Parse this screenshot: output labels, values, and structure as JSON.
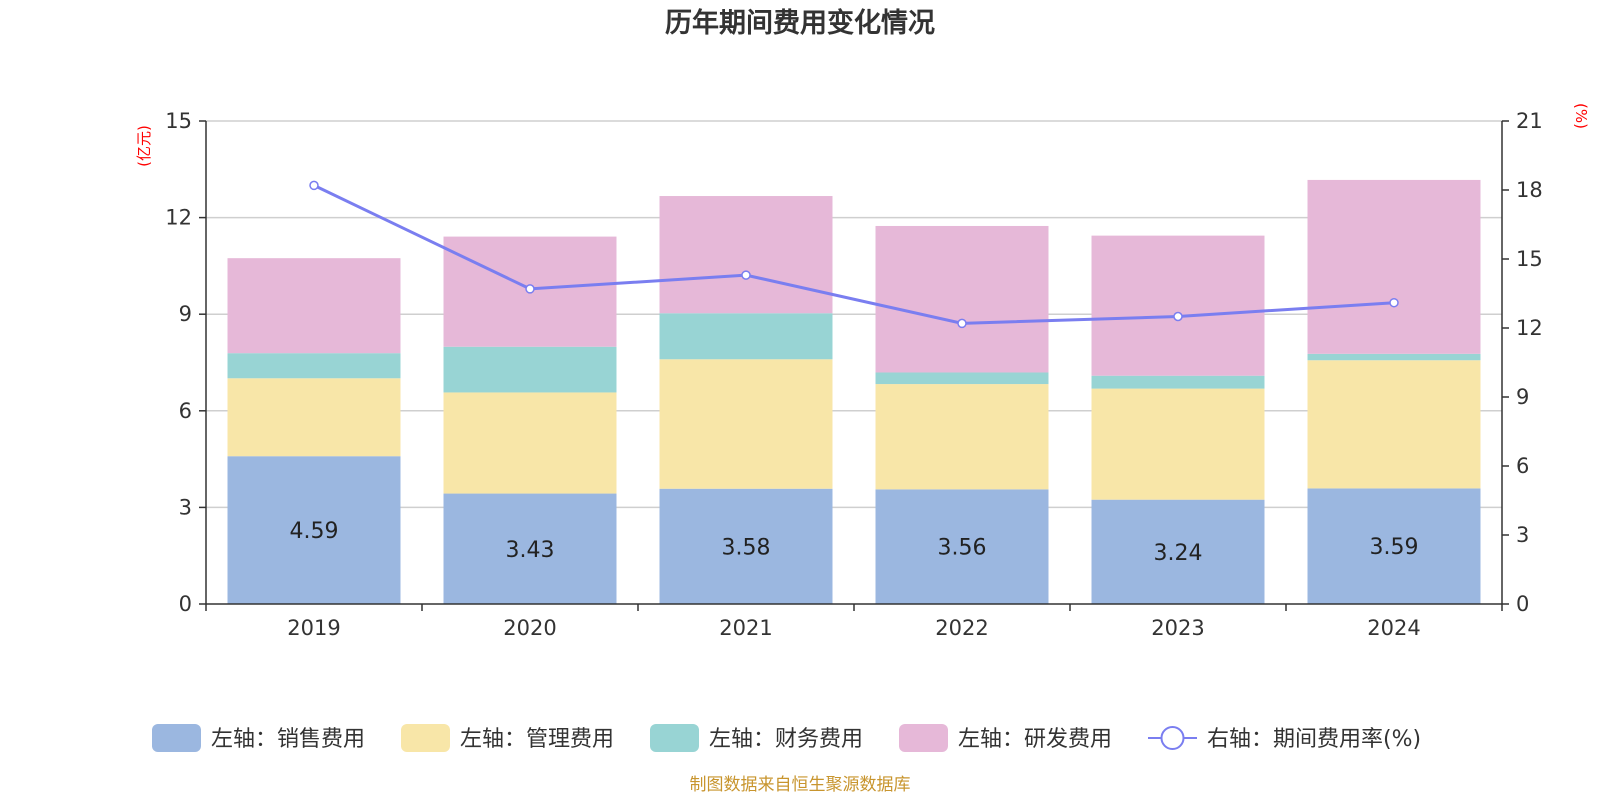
{
  "chart_data": {
    "type": "bar",
    "title": "历年期间费用变化情况",
    "categories": [
      "2019",
      "2020",
      "2021",
      "2022",
      "2023",
      "2024"
    ],
    "left_axis": {
      "unit": "(亿元)",
      "ylim": [
        0,
        15
      ],
      "ticks": [
        "0",
        "3",
        "6",
        "9",
        "12",
        "15"
      ]
    },
    "right_axis": {
      "unit": "(%)",
      "ylim": [
        0,
        21
      ],
      "ticks": [
        "0",
        "3",
        "6",
        "9",
        "12",
        "15",
        "18",
        "21"
      ]
    },
    "grid": true,
    "stacked": true,
    "series": [
      {
        "name": "左轴：销售费用",
        "type": "bar",
        "axis": "left",
        "color": "#9bb7e0",
        "values": [
          4.59,
          3.43,
          3.58,
          3.56,
          3.24,
          3.59
        ],
        "labels": [
          "4.59",
          "3.43",
          "3.58",
          "3.56",
          "3.24",
          "3.59"
        ]
      },
      {
        "name": "左轴：管理费用",
        "type": "bar",
        "axis": "left",
        "color": "#f8e6a8",
        "values": [
          2.42,
          3.14,
          4.02,
          3.27,
          3.45,
          3.98
        ]
      },
      {
        "name": "左轴：财务费用",
        "type": "bar",
        "axis": "left",
        "color": "#98d4d4",
        "values": [
          0.78,
          1.42,
          1.43,
          0.36,
          0.4,
          0.2
        ]
      },
      {
        "name": "左轴：研发费用",
        "type": "bar",
        "axis": "left",
        "color": "#e6b8d8",
        "values": [
          2.95,
          3.42,
          3.64,
          4.55,
          4.35,
          5.4
        ]
      },
      {
        "name": "右轴：期间费用率(%)",
        "type": "line",
        "axis": "right",
        "color": "#7a7ef0",
        "values": [
          18.2,
          13.7,
          14.3,
          12.2,
          12.5,
          13.1
        ]
      }
    ],
    "legend_position": "bottom",
    "source": "制图数据来自恒生聚源数据库"
  }
}
